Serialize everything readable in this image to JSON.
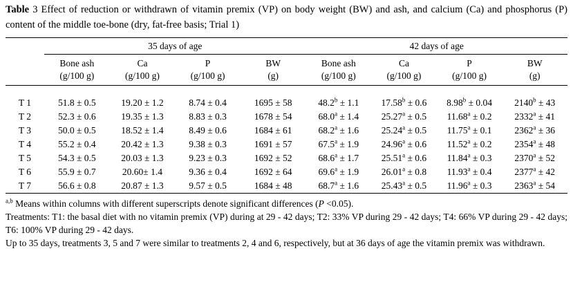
{
  "title": {
    "label_bold": "Table",
    "rest": " 3 Effect of reduction or withdrawn of vitamin premix (VP) on body weight (BW) and ash, and calcium (Ca) and phosphorus (P) content of the middle toe-bone (dry, fat-free basis; Trial 1)"
  },
  "chart_data": {
    "type": "table",
    "title": "Table 3 Effect of reduction or withdrawn of vitamin premix (VP) on body weight (BW) and ash, and calcium (Ca) and phosphorus (P) content of the middle toe-bone (dry, fat-free basis; Trial 1)",
    "group_headers": [
      "35 days of age",
      "42 days of age"
    ],
    "columns": [
      "Bone ash (g/100 g)",
      "Ca (g/100 g)",
      "P (g/100 g)",
      "BW (g)",
      "Bone ash (g/100 g)",
      "Ca (g/100 g)",
      "P (g/100 g)",
      "BW (g)"
    ]
  },
  "table": {
    "group_headers": [
      "35 days of age",
      "42 days of age"
    ],
    "sub_headers": [
      {
        "line1": "Bone ash",
        "line2": "(g/100 g)"
      },
      {
        "line1": "Ca",
        "line2": "(g/100 g)"
      },
      {
        "line1": "P",
        "line2": "(g/100 g)"
      },
      {
        "line1": "BW",
        "line2": "(g)"
      },
      {
        "line1": "Bone ash",
        "line2": "(g/100 g)"
      },
      {
        "line1": "Ca",
        "line2": "(g/100 g)"
      },
      {
        "line1": "P",
        "line2": "(g/100 g)"
      },
      {
        "line1": "BW",
        "line2": "(g)"
      }
    ],
    "rows": [
      {
        "label": "T 1",
        "cells": [
          "51.8 ± 0.5",
          "19.20 ± 1.2",
          "8.74 ± 0.4",
          "1695 ± 58",
          "48.2^b ± 1.1",
          "17.58^b ± 0.6",
          "8.98^b ± 0.04",
          "2140^b ± 43"
        ]
      },
      {
        "label": "T 2",
        "cells": [
          "52.3 ± 0.6",
          "19.35 ± 1.3",
          "8.83 ± 0.3",
          "1678 ± 54",
          "68.0^a ± 1.4",
          "25.27^a ± 0.5",
          "11.68^a ± 0.2",
          "2332^a ± 41"
        ]
      },
      {
        "label": "T 3",
        "cells": [
          "50.0 ± 0.5",
          "18.52 ± 1.4",
          "8.49 ± 0.6",
          "1684 ± 61",
          "68.2^a ± 1.6",
          "25.24^a ± 0.5",
          "11.75^a ± 0.1",
          "2362^a ± 36"
        ]
      },
      {
        "label": "T 4",
        "cells": [
          "55.2 ± 0.4",
          "20.42 ± 1.3",
          "9.38 ± 0.3",
          "1691 ± 57",
          "67.5^a ± 1.9",
          "24.96^a ± 0.6",
          "11.52^a ± 0.2",
          "2354^a ± 48"
        ]
      },
      {
        "label": "T 5",
        "cells": [
          "54.3 ± 0.5",
          "20.03 ± 1.3",
          "9.23 ± 0.3",
          "1692 ± 52",
          "68.6^a ± 1.7",
          "25.51^a ± 0.6",
          "11.84^a ± 0.3",
          "2370^a ± 52"
        ]
      },
      {
        "label": "T 6",
        "cells": [
          "55.9 ± 0.7",
          "20.60± 1.4",
          "9.36 ± 0.4",
          "1692 ± 64",
          "69.6^a ± 1.9",
          "26.01^a ± 0.8",
          "11.93^a ± 0.4",
          "2377^a ± 42"
        ]
      },
      {
        "label": "T 7",
        "cells": [
          "56.6 ± 0.8",
          "20.87 ± 1.3",
          "9.57 ± 0.5",
          "1684 ± 48",
          "68.7^a ± 1.6",
          "25.43^a ± 0.5",
          "11.96^a ± 0.3",
          "2363^a ± 54"
        ]
      }
    ]
  },
  "footnotes": [
    {
      "sup": "a,b",
      "text": "Means within columns with different superscripts denote significant differences (*P* <0.05)."
    },
    {
      "sup": "",
      "text": "Treatments: T1: the basal diet with no vitamin premix (VP) during at 29 - 42 days; T2: 33% VP during 29 - 42 days; T4: 66% VP during 29 - 42 days; T6: 100% VP during 29 - 42 days."
    },
    {
      "sup": "",
      "text": "Up to 35 days, treatments 3, 5 and 7 were similar to treatments 2, 4 and 6, respectively, but at 36 days of age the vitamin premix was withdrawn."
    }
  ]
}
